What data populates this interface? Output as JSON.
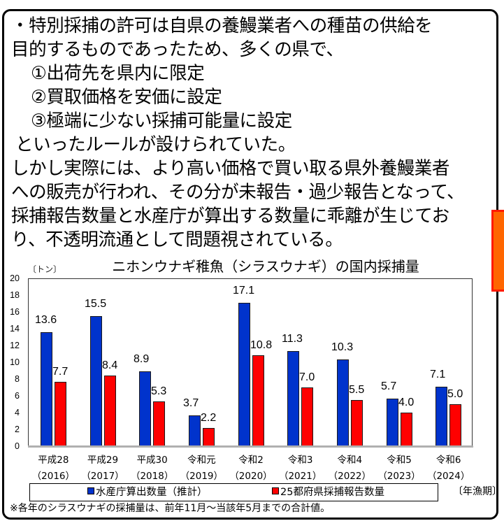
{
  "text": {
    "lines": [
      "・特別採捕の許可は自県の養鰻業者への種苗の供給を",
      "目的するものであったため、多くの県で、",
      "①出荷先を県内に限定",
      "②買取価格を安価に設定",
      "③極端に少ない採捕可能量に設定",
      "といったルールが設けられていた。",
      "しかし実際には、より高い価格で買い取る県外養鰻業者",
      "への販売が行われ、その分が未報告・過少報告となって、",
      "採捕報告数量と水産庁が算出する数量に乖離が生じてお",
      "り、不透明流通として問題視されている。"
    ]
  },
  "colors": {
    "series_blue": "#0033cc",
    "series_red": "#ff0000",
    "accent_orange": "#ff6600",
    "accent_orange_border": "#ff1a00"
  },
  "chart_data": {
    "type": "bar",
    "title": "ニホンウナギ稚魚（シラスウナギ）の国内採捕量",
    "ylabel": "〔トン〕",
    "xlabel": "〔年漁期〕",
    "ylim": [
      0,
      20
    ],
    "yticks": [
      "0",
      "2",
      "4",
      "6",
      "8",
      "10",
      "12",
      "14",
      "16",
      "18",
      "20"
    ],
    "grid": false,
    "legend_position": "bottom",
    "categories": [
      {
        "era": "平成28",
        "year": "（2016）"
      },
      {
        "era": "平成29",
        "year": "（2017）"
      },
      {
        "era": "平成30",
        "year": "（2018）"
      },
      {
        "era": "令和元",
        "year": "（2019）"
      },
      {
        "era": "令和2",
        "year": "（2020）"
      },
      {
        "era": "令和3",
        "year": "（2021）"
      },
      {
        "era": "令和4",
        "year": "（2022）"
      },
      {
        "era": "令和5",
        "year": "（2023）"
      },
      {
        "era": "令和6",
        "year": "（2024）"
      }
    ],
    "series": [
      {
        "name": "水産庁算出数量（推計）",
        "color": "#0033cc",
        "values": [
          13.6,
          15.5,
          8.9,
          3.7,
          17.1,
          11.3,
          10.3,
          5.7,
          7.1
        ],
        "labels": [
          "13.6",
          "15.5",
          "8.9",
          "3.7",
          "17.1",
          "11.3",
          "10.3",
          "5.7",
          "7.1"
        ]
      },
      {
        "name": "25都府県採捕報告数量",
        "color": "#ff0000",
        "values": [
          7.7,
          8.4,
          5.3,
          2.2,
          10.8,
          7.0,
          5.5,
          4.0,
          5.0
        ],
        "labels": [
          "7.7",
          "8.4",
          "5.3",
          "2.2",
          "10.8",
          "7.0",
          "5.5",
          "4.0",
          "5.0"
        ]
      }
    ],
    "footnote": "※各年のシラスウナギの採捕量は、前年11月～当該年5月までの合計値。"
  }
}
